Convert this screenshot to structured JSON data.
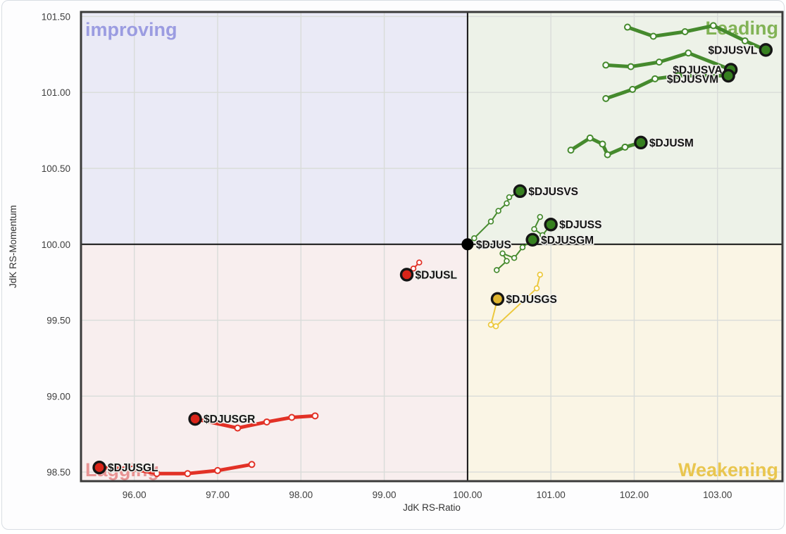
{
  "page": {
    "type": "Relative Rotation Graph (RRG) chart panel"
  },
  "colors": {
    "grid": "#d9dcd9",
    "axis_line": "#111111",
    "plot_border": "#3a3a3a",
    "tick_text": "#3f3f3f",
    "axis_title_text": "#333333",
    "label_text": "#141414",
    "label_halo": "#f0f0ec",
    "panel_bg": "#fdfdfe",
    "panel_border": "#d8dde3",
    "dot_ring": "#151515"
  },
  "chart_data": {
    "type": "scatter",
    "subtype": "rrg-trails",
    "title": "",
    "xlabel": "JdK RS-Ratio",
    "ylabel": "JdK RS-Momentum",
    "xlim": [
      95.36,
      103.78
    ],
    "ylim": [
      98.44,
      101.53
    ],
    "grid": true,
    "center": {
      "x": 100.0,
      "y": 100.0
    },
    "x_ticks": [
      {
        "value": 96,
        "label": "96.00"
      },
      {
        "value": 97,
        "label": "97.00"
      },
      {
        "value": 98,
        "label": "98.00"
      },
      {
        "value": 99,
        "label": "99.00"
      },
      {
        "value": 100,
        "label": "100.00"
      },
      {
        "value": 101,
        "label": "101.00"
      },
      {
        "value": 102,
        "label": "102.00"
      },
      {
        "value": 103,
        "label": "103.00"
      }
    ],
    "y_ticks": [
      {
        "value": 101.5,
        "label": "101.50"
      },
      {
        "value": 101.0,
        "label": "101.00"
      },
      {
        "value": 100.5,
        "label": "100.50"
      },
      {
        "value": 100.0,
        "label": "100.00"
      },
      {
        "value": 99.5,
        "label": "99.50"
      },
      {
        "value": 99.0,
        "label": "99.00"
      },
      {
        "value": 98.5,
        "label": "98.50"
      }
    ],
    "quadrants": [
      {
        "id": "improving",
        "label": "improving",
        "position": "top-left",
        "bg": "#eaeaf6",
        "label_color": "#9b9ce1"
      },
      {
        "id": "leading",
        "label": "Leading",
        "position": "top-right",
        "bg": "#edf2e8",
        "label_color": "#82b356"
      },
      {
        "id": "lagging",
        "label": "Lagging",
        "position": "bottom-left",
        "bg": "#f8eeee",
        "label_color": "#e89393"
      },
      {
        "id": "weakening",
        "label": "Weakening",
        "position": "bottom-right",
        "bg": "#faf5e5",
        "label_color": "#e9c64f"
      }
    ],
    "series": [
      {
        "symbol": "$DJUSVL",
        "color": "#458a2d",
        "dot_color": "#36801f",
        "width": 5,
        "label_side": "left",
        "points": [
          [
            101.92,
            101.43
          ],
          [
            102.23,
            101.37
          ],
          [
            102.61,
            101.4
          ],
          [
            102.95,
            101.44
          ],
          [
            103.33,
            101.34
          ],
          [
            103.58,
            101.28
          ]
        ]
      },
      {
        "symbol": "$DJUSVA",
        "color": "#458a2d",
        "dot_color": "#36801f",
        "width": 5,
        "label_side": "left",
        "points": [
          [
            101.66,
            101.18
          ],
          [
            101.96,
            101.17
          ],
          [
            102.3,
            101.2
          ],
          [
            102.65,
            101.26
          ],
          [
            103.16,
            101.15
          ]
        ]
      },
      {
        "symbol": "$DJUSVM",
        "color": "#458a2d",
        "dot_color": "#36801f",
        "width": 5,
        "label_side": "left",
        "label_dx": -14,
        "label_dy": 10,
        "points": [
          [
            101.66,
            100.96
          ],
          [
            101.98,
            101.02
          ],
          [
            102.25,
            101.09
          ],
          [
            102.53,
            101.11
          ],
          [
            103.13,
            101.11
          ]
        ]
      },
      {
        "symbol": "$DJUSM",
        "color": "#458a2d",
        "dot_color": "#36801f",
        "width": 5,
        "label_side": "right",
        "points": [
          [
            101.24,
            100.62
          ],
          [
            101.47,
            100.7
          ],
          [
            101.62,
            100.66
          ],
          [
            101.68,
            100.59
          ],
          [
            101.89,
            100.64
          ],
          [
            102.08,
            100.67
          ]
        ]
      },
      {
        "symbol": "$DJUSVS",
        "color": "#458a2d",
        "dot_color": "#36801f",
        "width": 2,
        "label_side": "right",
        "points": [
          [
            100.08,
            100.04
          ],
          [
            100.28,
            100.15
          ],
          [
            100.37,
            100.22
          ],
          [
            100.47,
            100.27
          ],
          [
            100.5,
            100.31
          ],
          [
            100.63,
            100.35
          ]
        ]
      },
      {
        "symbol": "$DJUSS",
        "color": "#458a2d",
        "dot_color": "#36801f",
        "width": 2,
        "label_side": "right",
        "points": [
          [
            100.87,
            100.18
          ],
          [
            100.8,
            100.1
          ],
          [
            100.9,
            100.06
          ],
          [
            101.0,
            100.13
          ]
        ]
      },
      {
        "symbol": "$DJUSGM",
        "color": "#458a2d",
        "dot_color": "#36801f",
        "width": 2,
        "label_side": "right",
        "points": [
          [
            100.35,
            99.83
          ],
          [
            100.47,
            99.89
          ],
          [
            100.42,
            99.94
          ],
          [
            100.56,
            99.91
          ],
          [
            100.66,
            99.98
          ],
          [
            100.78,
            100.03
          ]
        ]
      },
      {
        "symbol": "$DJUSGS",
        "color": "#ecc83d",
        "dot_color": "#dfb52e",
        "width": 2,
        "label_side": "right",
        "points": [
          [
            100.87,
            99.8
          ],
          [
            100.83,
            99.71
          ],
          [
            100.34,
            99.46
          ],
          [
            100.28,
            99.47
          ],
          [
            100.36,
            99.64
          ]
        ]
      },
      {
        "symbol": "$DJUSL",
        "color": "#e23126",
        "dot_color": "#d92419",
        "width": 2,
        "label_side": "right",
        "points": [
          [
            99.42,
            99.88
          ],
          [
            99.35,
            99.84
          ],
          [
            99.27,
            99.8
          ]
        ]
      },
      {
        "symbol": "$DJUSGR",
        "color": "#e23126",
        "dot_color": "#d92419",
        "width": 5,
        "label_side": "right",
        "points": [
          [
            98.17,
            98.87
          ],
          [
            97.89,
            98.86
          ],
          [
            97.59,
            98.83
          ],
          [
            97.24,
            98.79
          ],
          [
            96.73,
            98.85
          ]
        ]
      },
      {
        "symbol": "$DJUSGL",
        "color": "#e23126",
        "dot_color": "#d92419",
        "width": 5,
        "label_side": "right",
        "points": [
          [
            97.41,
            98.55
          ],
          [
            97.0,
            98.51
          ],
          [
            96.64,
            98.49
          ],
          [
            96.27,
            98.49
          ],
          [
            95.98,
            98.52
          ],
          [
            95.58,
            98.53
          ]
        ]
      },
      {
        "symbol": "$DJUS",
        "color": "#000000",
        "dot_color": "#000000",
        "width": 2,
        "label_side": "right",
        "benchmark": true,
        "points": [
          [
            100.0,
            100.0
          ]
        ]
      }
    ]
  }
}
